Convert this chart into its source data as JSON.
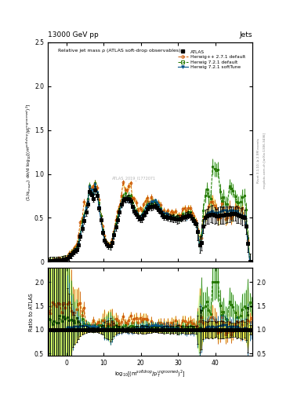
{
  "title_top_left": "13000 GeV pp",
  "title_top_right": "Jets",
  "plot_title": "Relative jet mass ρ (ATLAS soft-drop observables)",
  "ylabel_main": "(1/σ$_{resum}$) dσ/d log$_{10}$[(m$^{soft drop}$/p$_T^{ungroomed}$)$^2$]",
  "ylabel_ratio": "Ratio to ATLAS",
  "xlabel": "log$_{10}$[(m$^{soft drop}$/p$_T^{ungroomed}$)$^2$]",
  "right_label_top": "Rivet 3.1.10; ≥ 2.9M events",
  "right_label_bot": "mcplots.cern.ch [arXiv:1306.3436]",
  "watermark": "ATLAS_2019_I1772071",
  "legend_entries": [
    "ATLAS",
    "Herwig++ 2.7.1 default",
    "Herwig 7.2.1 default",
    "Herwig 7.2.1 softTune"
  ],
  "ylim_main": [
    0.0,
    2.5
  ],
  "ylim_ratio": [
    0.45,
    2.3
  ],
  "yticks_main": [
    0.0,
    0.5,
    1.0,
    1.5,
    2.0,
    2.5
  ],
  "yticks_ratio": [
    0.5,
    1.0,
    1.5,
    2.0
  ],
  "colors": {
    "atlas": "#000000",
    "herwig_pp": "#cc5500",
    "herwig7_def": "#227700",
    "herwig7_soft": "#005588"
  },
  "x": [
    -4.75,
    -4.25,
    -3.75,
    -3.25,
    -2.75,
    -2.25,
    -1.75,
    -1.25,
    -0.75,
    -0.25,
    0.25,
    0.75,
    1.25,
    1.75,
    2.25,
    2.75,
    3.25,
    3.75,
    4.25,
    4.75,
    5.25,
    5.75,
    6.25,
    6.75,
    7.25,
    7.75,
    8.25,
    8.75,
    9.25,
    9.75,
    10.25,
    10.75,
    11.25,
    11.75,
    12.25,
    12.75,
    13.25,
    13.75,
    14.25,
    14.75,
    15.25,
    15.75,
    16.25,
    16.75,
    17.25,
    17.75,
    18.25,
    18.75,
    19.25,
    19.75,
    20.25,
    20.75,
    21.25,
    21.75,
    22.25,
    22.75,
    23.25,
    23.75,
    24.25,
    24.75,
    25.25,
    25.75,
    26.25,
    26.75,
    27.25,
    27.75,
    28.25,
    28.75,
    29.25,
    29.75,
    30.25,
    30.75,
    31.25,
    31.75,
    32.25,
    32.75,
    33.25,
    33.75,
    34.25,
    34.75,
    35.25,
    35.75,
    36.25,
    36.75,
    37.25,
    37.75,
    38.25,
    38.75,
    39.25,
    39.75,
    40.25,
    40.75,
    41.25,
    41.75,
    42.25,
    42.75,
    43.25,
    43.75,
    44.25,
    44.75,
    45.25,
    45.75,
    46.25,
    46.75,
    47.25,
    47.75,
    48.25,
    48.75,
    49.25,
    49.75
  ],
  "xlim": [
    -5,
    50
  ],
  "xticks": [
    0,
    10,
    20,
    30,
    40
  ],
  "xticklabels": [
    "0",
    "10",
    "20",
    "30",
    "40"
  ],
  "figsize": [
    3.93,
    5.12
  ],
  "dpi": 100
}
